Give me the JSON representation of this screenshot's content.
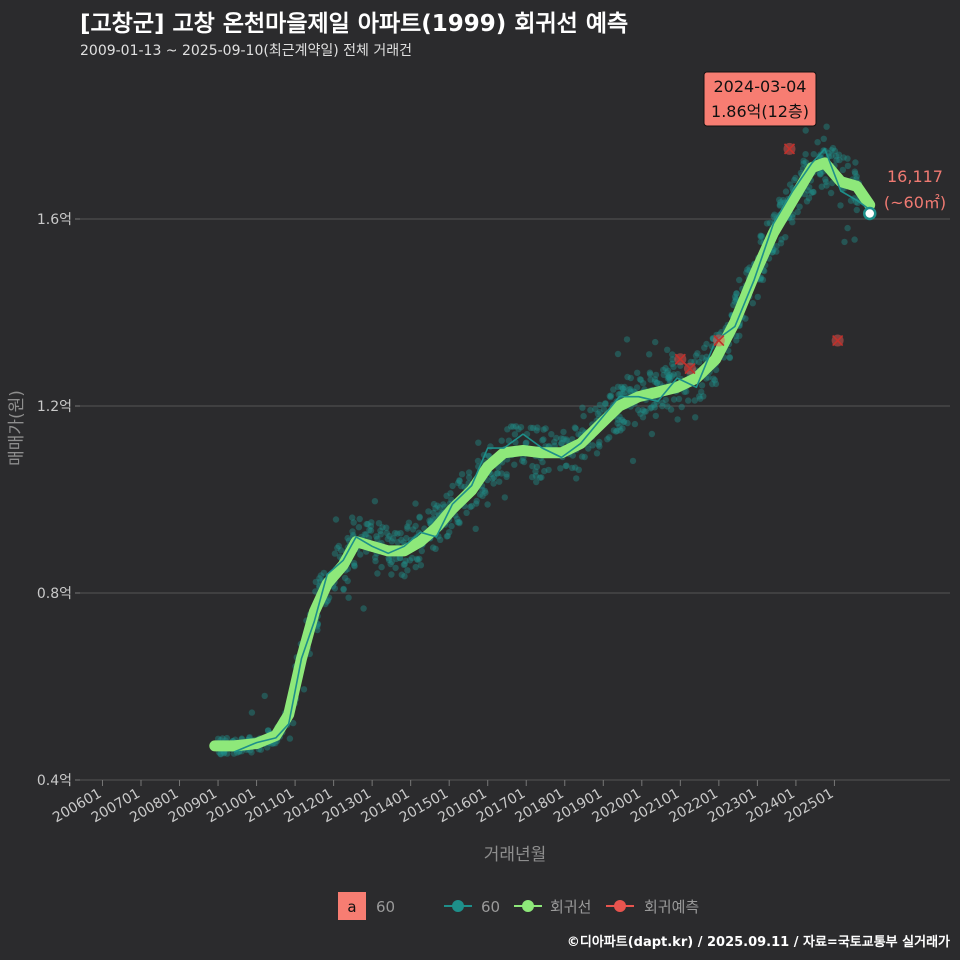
{
  "header": {
    "title": "[고창군] 고창 온천마을제일 아파트(1999) 회귀선 예측",
    "subtitle": "2009-01-13 ~ 2025-09-10(최근계약일) 전체 거래건"
  },
  "footer": {
    "credit": "©디아파트(dapt.kr) / 2025.09.11 / 자료=국토교통부 실거래가"
  },
  "colors": {
    "background": "#2b2b2d",
    "grid": "#555555",
    "points": "#1e8f8a",
    "trend": "#1e8f8a",
    "regression": "#8ee87a",
    "forecast": "#e8544e",
    "annotation_fill": "#f77d72"
  },
  "chart_data": {
    "type": "scatter",
    "xlabel": "거래년월",
    "ylabel": "매매가(원)",
    "x_range": [
      "2005-06",
      "2028-01"
    ],
    "ylim": [
      0.4,
      1.95
    ],
    "y_ticks": [
      {
        "value": 0.4,
        "label": "0.4억"
      },
      {
        "value": 0.8,
        "label": "0.8억"
      },
      {
        "value": 1.2,
        "label": "1.2억"
      },
      {
        "value": 1.6,
        "label": "1.6억"
      }
    ],
    "x_ticks": [
      "200601",
      "200701",
      "200801",
      "200901",
      "201001",
      "201101",
      "201201",
      "201301",
      "201401",
      "201501",
      "201601",
      "201701",
      "201801",
      "201901",
      "202001",
      "202101",
      "202201",
      "202301",
      "202401",
      "202501"
    ],
    "series": [
      {
        "name": "회귀선",
        "points": [
          [
            "2008-12",
            0.473
          ],
          [
            "2009-06",
            0.473
          ],
          [
            "2010-01",
            0.478
          ],
          [
            "2010-07",
            0.495
          ],
          [
            "2010-11",
            0.54
          ],
          [
            "2011-03",
            0.66
          ],
          [
            "2011-07",
            0.76
          ],
          [
            "2011-11",
            0.82
          ],
          [
            "2012-04",
            0.86
          ],
          [
            "2012-08",
            0.91
          ],
          [
            "2013-01",
            0.9
          ],
          [
            "2013-06",
            0.89
          ],
          [
            "2013-11",
            0.89
          ],
          [
            "2014-04",
            0.91
          ],
          [
            "2014-09",
            0.94
          ],
          [
            "2015-02",
            0.98
          ],
          [
            "2015-08",
            1.02
          ],
          [
            "2016-01",
            1.07
          ],
          [
            "2016-06",
            1.1
          ],
          [
            "2016-12",
            1.105
          ],
          [
            "2017-06",
            1.1
          ],
          [
            "2017-12",
            1.1
          ],
          [
            "2018-06",
            1.12
          ],
          [
            "2018-12",
            1.16
          ],
          [
            "2019-06",
            1.2
          ],
          [
            "2019-12",
            1.22
          ],
          [
            "2020-06",
            1.23
          ],
          [
            "2020-12",
            1.24
          ],
          [
            "2021-06",
            1.26
          ],
          [
            "2021-12",
            1.3
          ],
          [
            "2022-06",
            1.38
          ],
          [
            "2022-12",
            1.48
          ],
          [
            "2023-06",
            1.57
          ],
          [
            "2023-12",
            1.64
          ],
          [
            "2024-06",
            1.71
          ],
          [
            "2024-10",
            1.72
          ],
          [
            "2025-03",
            1.68
          ],
          [
            "2025-08",
            1.67
          ],
          [
            "2025-12",
            1.63
          ]
        ]
      },
      {
        "name": "60",
        "points": [
          [
            "2009-06",
            0.46
          ],
          [
            "2010-01",
            0.48
          ],
          [
            "2010-07",
            0.49
          ],
          [
            "2010-11",
            0.52
          ],
          [
            "2011-03",
            0.66
          ],
          [
            "2011-07",
            0.74
          ],
          [
            "2011-11",
            0.84
          ],
          [
            "2012-04",
            0.87
          ],
          [
            "2012-08",
            0.92
          ],
          [
            "2013-01",
            0.9
          ],
          [
            "2013-06",
            0.885
          ],
          [
            "2013-11",
            0.9
          ],
          [
            "2014-04",
            0.93
          ],
          [
            "2014-09",
            0.92
          ],
          [
            "2015-02",
            0.99
          ],
          [
            "2015-08",
            1.03
          ],
          [
            "2016-01",
            1.11
          ],
          [
            "2016-06",
            1.11
          ],
          [
            "2016-12",
            1.14
          ],
          [
            "2017-06",
            1.11
          ],
          [
            "2017-12",
            1.09
          ],
          [
            "2018-06",
            1.12
          ],
          [
            "2018-12",
            1.17
          ],
          [
            "2019-06",
            1.22
          ],
          [
            "2019-12",
            1.22
          ],
          [
            "2020-06",
            1.21
          ],
          [
            "2020-12",
            1.26
          ],
          [
            "2021-06",
            1.24
          ],
          [
            "2021-12",
            1.34
          ],
          [
            "2022-06",
            1.37
          ],
          [
            "2022-12",
            1.47
          ],
          [
            "2023-06",
            1.59
          ],
          [
            "2023-12",
            1.66
          ],
          [
            "2024-06",
            1.72
          ],
          [
            "2024-10",
            1.75
          ],
          [
            "2025-03",
            1.66
          ],
          [
            "2025-08",
            1.64
          ],
          [
            "2025-12",
            1.62
          ]
        ]
      },
      {
        "name": "회귀예측",
        "points": [
          [
            "2021-01",
            1.3
          ],
          [
            "2021-04",
            1.28
          ],
          [
            "2022-01",
            1.34
          ],
          [
            "2023-11",
            1.75
          ],
          [
            "2025-02",
            1.34
          ]
        ]
      }
    ],
    "annotations": [
      {
        "date": "2024-03-04",
        "price": "1.86억(12층)",
        "x": "2023-12",
        "y": 1.86
      }
    ],
    "last_point": {
      "x": "2025-12",
      "y": 1.6117,
      "value_label": "16,117",
      "area_label": "(~60㎡)"
    }
  },
  "legend": {
    "box_glyph": "a",
    "box_label": "60",
    "items": [
      {
        "label": "60",
        "color": "#1e8f8a"
      },
      {
        "label": "회귀선",
        "color": "#8ee87a"
      },
      {
        "label": "회귀예측",
        "color": "#e8544e"
      }
    ]
  }
}
